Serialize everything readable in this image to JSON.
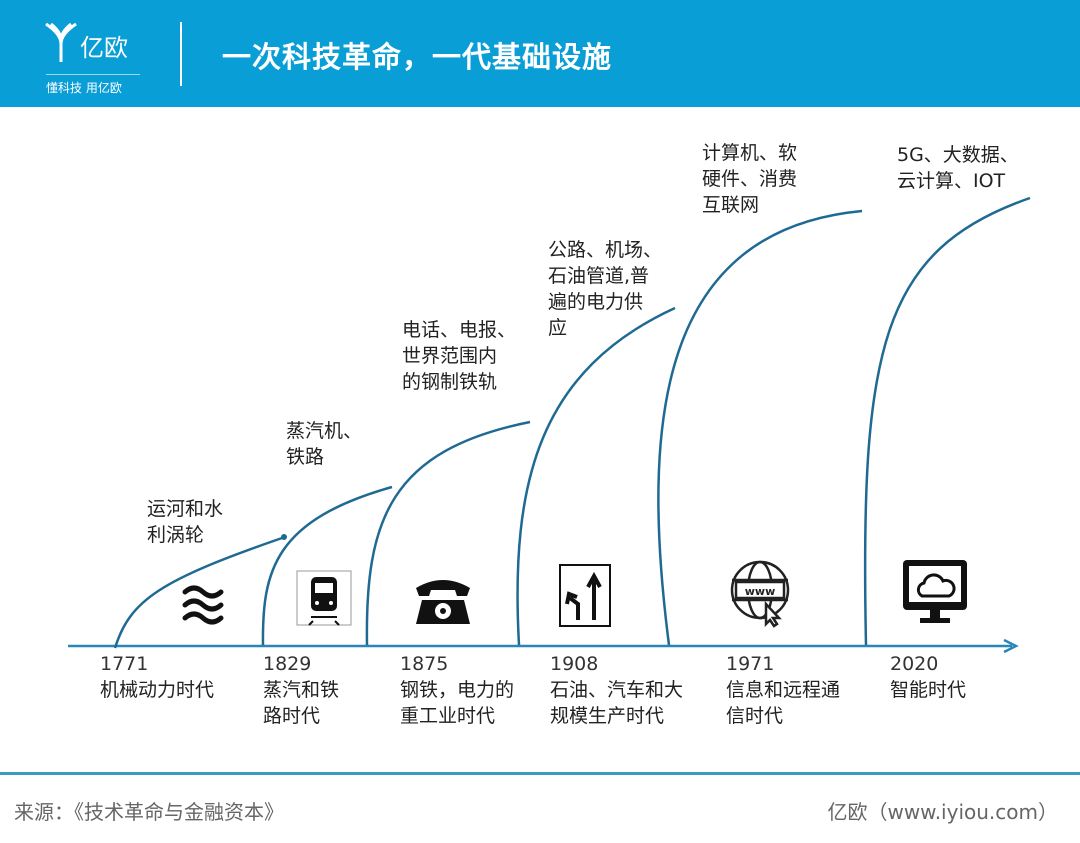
{
  "header": {
    "brand": "亿欧",
    "slogan": "懂科技 用亿欧",
    "title": "一次科技革命，一代基础设施"
  },
  "colors": {
    "header": "#0a9ed6",
    "curve": "#1f6a93",
    "axis": "#2a86b8"
  },
  "waves": [
    {
      "year": "1771",
      "era": "机械动力时代",
      "infra": "运河和水\n利涡轮",
      "icon": "waves-icon"
    },
    {
      "year": "1829",
      "era": "蒸汽和铁\n路时代",
      "infra": "蒸汽机、\n铁路",
      "icon": "train-icon"
    },
    {
      "year": "1875",
      "era": "钢铁，电力的\n重工业时代",
      "infra": "电话、电报、\n世界范围内\n的钢制铁轨",
      "icon": "telephone-icon"
    },
    {
      "year": "1908",
      "era": "石油、汽车和大\n规模生产时代",
      "infra": "公路、机场、\n石油管道,普\n遍的电力供\n应",
      "icon": "road-sign-icon"
    },
    {
      "year": "1971",
      "era": "信息和远程通\n信时代",
      "infra": "计算机、软\n硬件、消费\n互联网",
      "icon": "www-globe-icon"
    },
    {
      "year": "2020",
      "era": "智能时代",
      "infra": "5G、大数据、\n云计算、IOT",
      "icon": "cloud-monitor-icon"
    }
  ],
  "footer": {
    "source": "来源：《技术革命与金融资本》",
    "credit": "亿欧（www.iyiou.com）"
  }
}
